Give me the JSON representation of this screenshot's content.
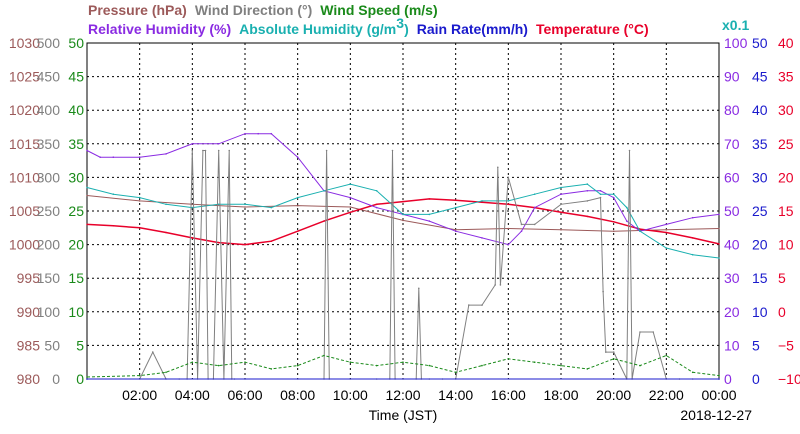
{
  "chart_data": {
    "type": "line",
    "date": "2018-12-27",
    "xlabel": "Time (JST)",
    "x_ticks": [
      "02:00",
      "04:00",
      "06:00",
      "08:00",
      "10:00",
      "12:00",
      "14:00",
      "16:00",
      "18:00",
      "20:00",
      "22:00",
      "00:00"
    ],
    "x_range_hours": [
      0,
      24
    ],
    "legend": [
      {
        "name": "Pressure (hPa)",
        "color": "#9c5a5a"
      },
      {
        "name": "Wind Direction (°)",
        "color": "#808080"
      },
      {
        "name": "Wind Speed (m/s)",
        "color": "#1a8a1a"
      },
      {
        "name": "Relative Humidity (%)",
        "color": "#8a2be2"
      },
      {
        "name": "Absolute Humidity (g/m³)",
        "color": "#1ab0b0"
      },
      {
        "name": "Rain Rate(mm/h)",
        "color": "#1a1acc"
      },
      {
        "name": "Temperature (°C)",
        "color": "#e8002a"
      }
    ],
    "legend_row1": [
      {
        "text": "Pressure (hPa)",
        "color": "#9c5a5a"
      },
      {
        "text": "Wind Direction (°)",
        "color": "#808080"
      },
      {
        "text": "Wind Speed (m/s)",
        "color": "#1a8a1a"
      }
    ],
    "legend_row2": [
      {
        "text": "Relative Humidity (%)",
        "color": "#8a2be2"
      },
      {
        "text": "Absolute Humidity (g/m",
        "color": "#1ab0b0"
      },
      {
        "text": "3",
        "color": "#1ab0b0"
      },
      {
        "text": ")",
        "color": "#1ab0b0"
      },
      {
        "text": "Rain Rate(mm/h)",
        "color": "#1a1acc"
      },
      {
        "text": "Temperature (°C)",
        "color": "#e8002a"
      }
    ],
    "multiplier": "x0.1",
    "axes": {
      "pressure": {
        "color": "#9c5a5a",
        "ylim": [
          980,
          1030
        ],
        "ticks": [
          "1030",
          "1025",
          "1020",
          "1015",
          "1010",
          "1005",
          "1000",
          "995",
          "990",
          "985",
          "980"
        ]
      },
      "wind_direction": {
        "color": "#808080",
        "ylim": [
          0,
          500
        ],
        "ticks": [
          "500",
          "450",
          "400",
          "350",
          "300",
          "250",
          "200",
          "150",
          "100",
          "50",
          "0"
        ]
      },
      "wind_speed": {
        "color": "#1a8a1a",
        "ylim": [
          0,
          50
        ],
        "ticks": [
          "50",
          "45",
          "40",
          "35",
          "30",
          "25",
          "20",
          "15",
          "10",
          "5",
          "0"
        ]
      },
      "relative_humidity": {
        "color": "#8a2be2",
        "ylim": [
          0,
          100
        ],
        "ticks": [
          "100",
          "90",
          "80",
          "70",
          "60",
          "50",
          "40",
          "30",
          "20",
          "10",
          "0"
        ]
      },
      "rain_rate": {
        "color": "#1a1acc",
        "ylim": [
          0,
          50
        ],
        "ticks": [
          "50",
          "45",
          "40",
          "35",
          "30",
          "25",
          "20",
          "15",
          "10",
          "5",
          "0"
        ]
      },
      "temperature": {
        "color": "#e8002a",
        "ylim": [
          -10,
          40
        ],
        "ticks": [
          "40",
          "35",
          "30",
          "25",
          "20",
          "15",
          "10",
          "5",
          "0",
          "−5",
          "−10"
        ]
      }
    },
    "series": [
      {
        "name": "Pressure (hPa)",
        "axis": "pressure",
        "color": "#9c5a5a",
        "x": [
          0,
          2,
          4,
          6,
          8,
          10,
          12,
          14,
          16,
          18,
          20,
          22,
          24
        ],
        "values": [
          1007.3,
          1006.5,
          1006.0,
          1005.6,
          1005.8,
          1005.6,
          1003.6,
          1002.2,
          1002.4,
          1002.2,
          1002.0,
          1002.2,
          1002.4
        ]
      },
      {
        "name": "Temperature (°C)",
        "axis": "temperature",
        "color": "#e8002a",
        "x": [
          0,
          1,
          2,
          3,
          4,
          5,
          6,
          7,
          8,
          9,
          10,
          11,
          12,
          13,
          14,
          15,
          16,
          17,
          18,
          19,
          20,
          21,
          22,
          23,
          24
        ],
        "values": [
          13.0,
          12.8,
          12.5,
          11.8,
          11.0,
          10.3,
          10.0,
          10.5,
          12.0,
          13.5,
          14.8,
          16.0,
          16.4,
          16.8,
          16.6,
          16.3,
          16.0,
          15.5,
          14.8,
          14.2,
          13.4,
          12.3,
          11.8,
          11.0,
          10.1
        ]
      },
      {
        "name": "Relative Humidity (%)",
        "axis": "relative_humidity",
        "color": "#8a2be2",
        "x": [
          0,
          0.5,
          1,
          2,
          3,
          4,
          5,
          6,
          6.5,
          7,
          8,
          9,
          10,
          11,
          12,
          13,
          14,
          15,
          16,
          16.5,
          17,
          18,
          19,
          19.5,
          20,
          20.5,
          21,
          22,
          23,
          24
        ],
        "values": [
          68,
          66,
          66,
          66,
          67,
          70,
          70,
          73,
          73,
          73,
          66,
          56,
          54,
          51,
          49,
          47,
          44,
          42,
          40,
          44,
          51,
          55,
          56,
          56,
          54,
          47,
          44,
          46,
          48,
          49
        ]
      },
      {
        "name": "Absolute Humidity (g/m³)",
        "axis": "relative_humidity",
        "color": "#1ab0b0",
        "x": [
          0,
          1,
          2,
          3,
          4,
          5,
          6,
          7,
          8,
          9,
          10,
          11,
          12,
          13,
          14,
          15,
          16,
          17,
          18,
          19,
          19.5,
          20,
          20.5,
          21,
          22,
          23,
          24
        ],
        "values": [
          57,
          55,
          54,
          52,
          51,
          52,
          52,
          51,
          54,
          56,
          58,
          56,
          49,
          49,
          51,
          53,
          53,
          55,
          57,
          58,
          55,
          55,
          51,
          44,
          39,
          37,
          36
        ]
      },
      {
        "name": "Wind Direction (°)",
        "axis": "wind_direction",
        "color": "#808080",
        "x": [
          0,
          2,
          2.5,
          3,
          3.5,
          3.8,
          4,
          4.2,
          4.4,
          4.5,
          4.6,
          4.8,
          5,
          5.2,
          5.4,
          5.5,
          5.6,
          6,
          8,
          9,
          9.1,
          9.2,
          10,
          11,
          11.5,
          11.6,
          11.7,
          12,
          12.5,
          12.6,
          12.7,
          13,
          13.5,
          14,
          14.5,
          15,
          15.5,
          15.6,
          15.7,
          16,
          16.5,
          17,
          18,
          19,
          19.5,
          19.6,
          19.7,
          20,
          20.5,
          20.6,
          20.7,
          21,
          21.5,
          22,
          22.5,
          23,
          24
        ],
        "values": [
          0,
          0,
          40,
          0,
          0,
          0,
          340,
          0,
          340,
          340,
          0,
          0,
          340,
          0,
          340,
          0,
          0,
          0,
          0,
          0,
          340,
          0,
          0,
          0,
          0,
          340,
          0,
          0,
          0,
          135,
          0,
          0,
          0,
          0,
          110,
          110,
          140,
          315,
          140,
          300,
          230,
          230,
          260,
          265,
          270,
          130,
          40,
          40,
          0,
          340,
          0,
          70,
          70,
          0,
          0,
          0,
          0
        ]
      },
      {
        "name": "Wind Speed (m/s)",
        "axis": "wind_speed",
        "color": "#1a8a1a",
        "x": [
          0,
          2,
          3,
          4,
          5,
          6,
          7,
          8,
          9,
          10,
          11,
          12,
          13,
          14,
          15,
          16,
          17,
          18,
          19,
          20,
          21,
          22,
          23,
          24
        ],
        "values": [
          0.3,
          0.5,
          1.0,
          2.5,
          2.0,
          2.5,
          1.5,
          2.0,
          3.5,
          2.5,
          2.0,
          2.5,
          2.0,
          1.0,
          2.0,
          3.0,
          2.5,
          2.0,
          1.5,
          3.0,
          2.0,
          3.5,
          1.0,
          0.5
        ]
      },
      {
        "name": "Rain Rate(mm/h)",
        "axis": "rain_rate",
        "color": "#1a1acc",
        "x": [
          0,
          24
        ],
        "values": [
          0,
          0
        ]
      }
    ],
    "grid": true
  }
}
